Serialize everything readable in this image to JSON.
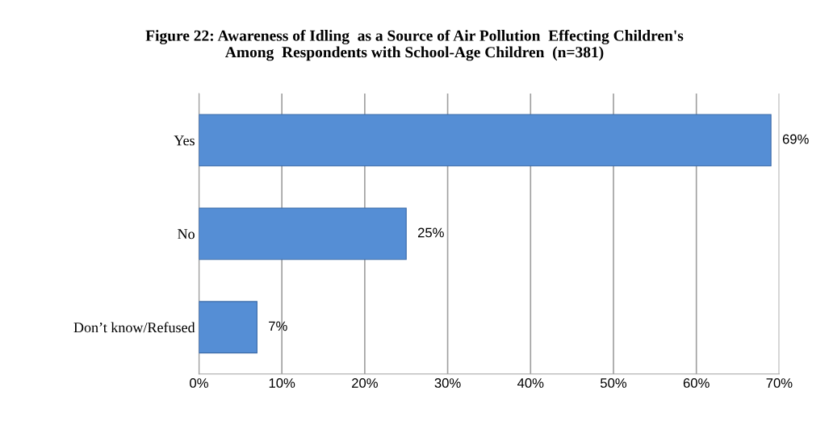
{
  "chart_data": {
    "type": "bar",
    "orientation": "horizontal",
    "title": "Figure 22: Awareness of Idling  as a Source of Air Pollution  Effecting Children's\nAmong  Respondents with School-Age Children  (n=381)",
    "categories": [
      "Yes",
      "No",
      "Don’t know/Refused"
    ],
    "values": [
      69,
      25,
      7
    ],
    "color": "#558ed5",
    "value_labels": [
      "69%",
      "25%",
      "7%"
    ],
    "xlim": [
      0,
      70
    ],
    "xticks": [
      {
        "value": 0,
        "label": "0%"
      },
      {
        "value": 10,
        "label": "10%"
      },
      {
        "value": 20,
        "label": "20%"
      },
      {
        "value": 30,
        "label": "30%"
      },
      {
        "value": 40,
        "label": "40%"
      },
      {
        "value": 50,
        "label": "50%"
      },
      {
        "value": 60,
        "label": "60%"
      },
      {
        "value": 70,
        "label": "70%"
      }
    ],
    "grid": "x",
    "legend": false
  }
}
